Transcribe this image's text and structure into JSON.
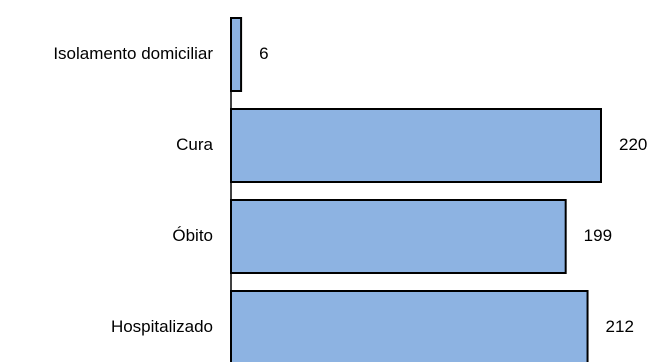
{
  "chart_data": {
    "type": "bar",
    "orientation": "horizontal",
    "categories": [
      "Isolamento domiciliar",
      "Cura",
      "Óbito",
      "Hospitalizado"
    ],
    "values": [
      6,
      220,
      199,
      212
    ],
    "data_labels": [
      "6",
      "220",
      "199",
      "212"
    ],
    "title": "",
    "xlabel": "",
    "ylabel": "",
    "xlim": [
      0,
      220
    ],
    "grid": false,
    "legend": "none",
    "colors": {
      "bar_fill": "#8db3e2",
      "bar_stroke": "#000000",
      "axis": "#000000",
      "text": "#000000"
    }
  }
}
